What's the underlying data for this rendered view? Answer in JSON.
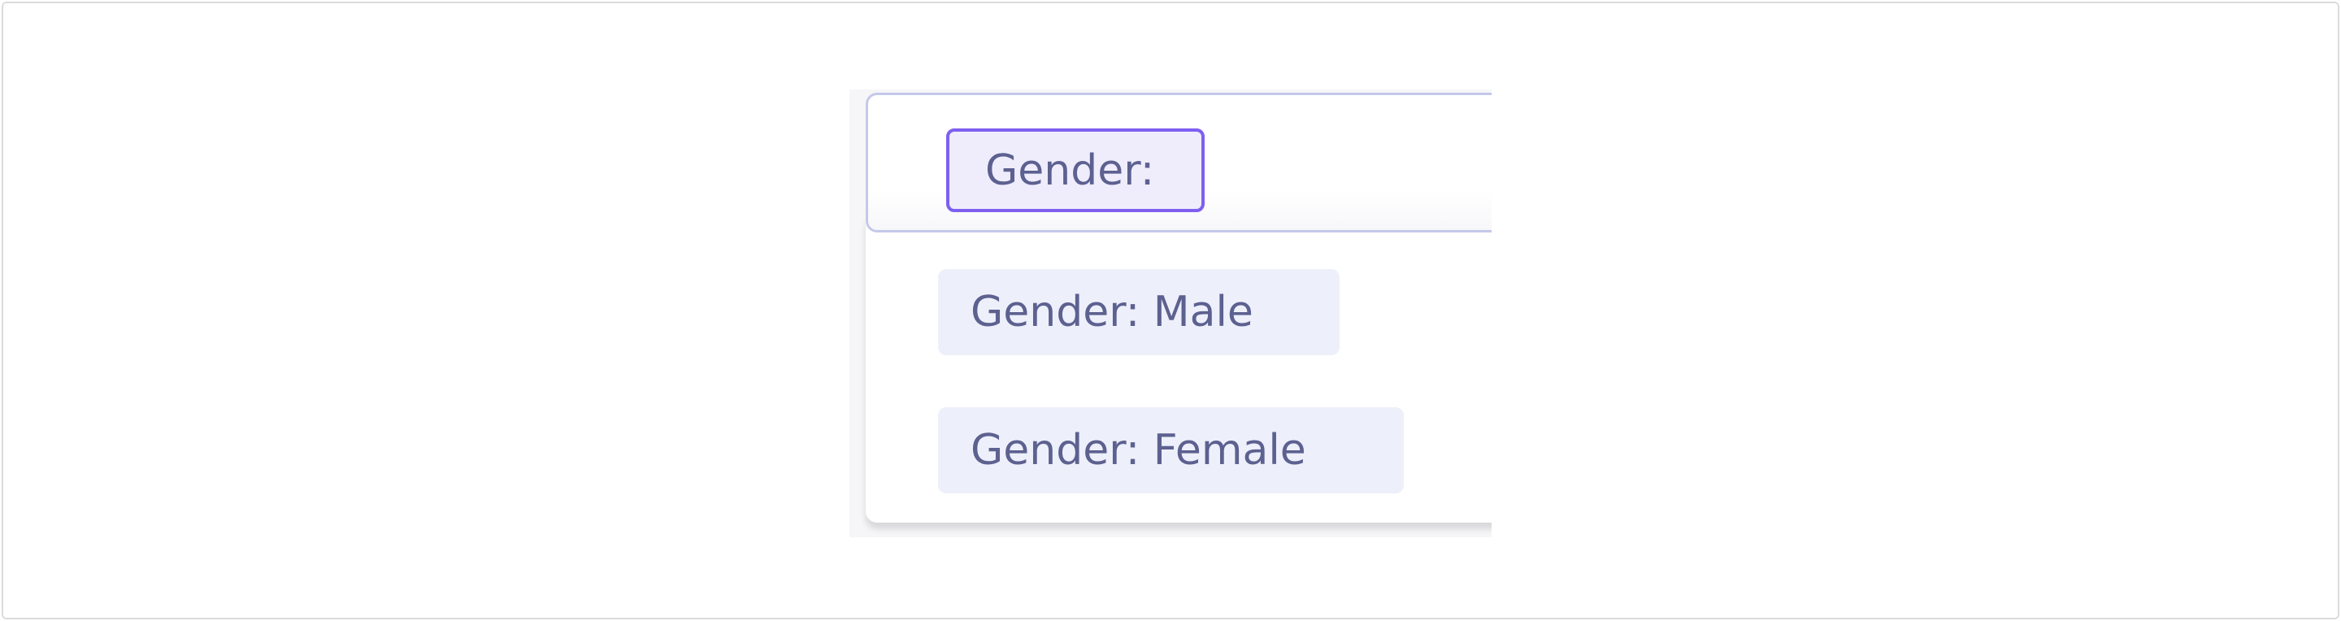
{
  "filter_input": {
    "active_token": "Gender:"
  },
  "suggestions": [
    {
      "label": "Gender: Male"
    },
    {
      "label": "Gender: Female"
    }
  ],
  "background_fragment": "l",
  "colors": {
    "accent": "#7e5ff0",
    "chip_bg": "#edf0fa",
    "text": "#5d6190"
  }
}
